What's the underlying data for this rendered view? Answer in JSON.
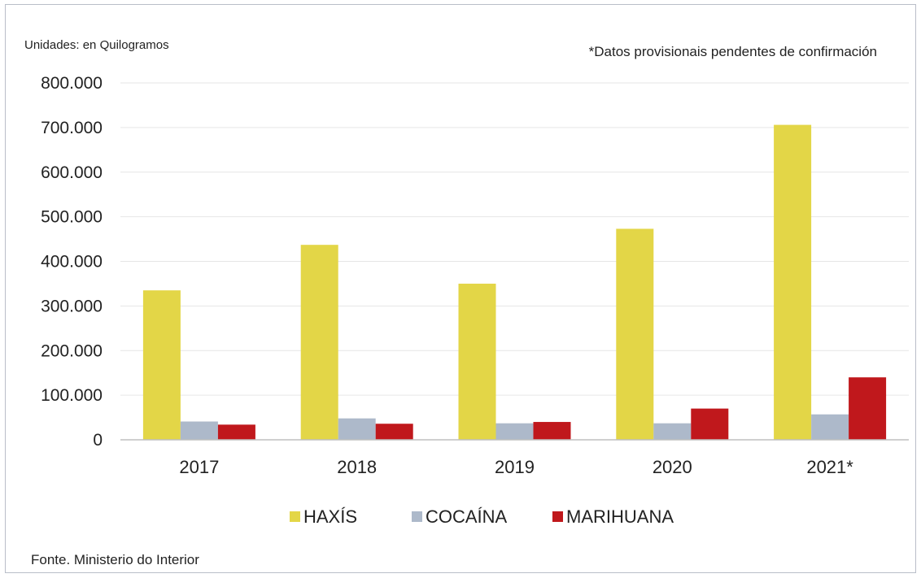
{
  "header": {
    "units": "Unidades: en Quilogramos",
    "note": "*Datos provisionais pendentes de confirmación"
  },
  "footer": {
    "source": "Fonte. Ministerio do Interior"
  },
  "chart_data": {
    "type": "bar",
    "categories": [
      "2017",
      "2018",
      "2019",
      "2020",
      "2021*"
    ],
    "series": [
      {
        "name": "HAXÍS",
        "color": "#e3d647",
        "values": [
          335000,
          437000,
          350000,
          473000,
          706000
        ]
      },
      {
        "name": "COCAÍNA",
        "color": "#adb9ca",
        "values": [
          41000,
          48000,
          37000,
          37000,
          57000
        ]
      },
      {
        "name": "MARIHUANA",
        "color": "#c0181c",
        "values": [
          34000,
          36000,
          40000,
          70000,
          140000
        ]
      }
    ],
    "yticks": [
      "0",
      "100.000",
      "200.000",
      "300.000",
      "400.000",
      "500.000",
      "600.000",
      "700.000",
      "800.000"
    ],
    "ylim": [
      0,
      800000
    ],
    "grid": true,
    "legend_position": "bottom"
  }
}
